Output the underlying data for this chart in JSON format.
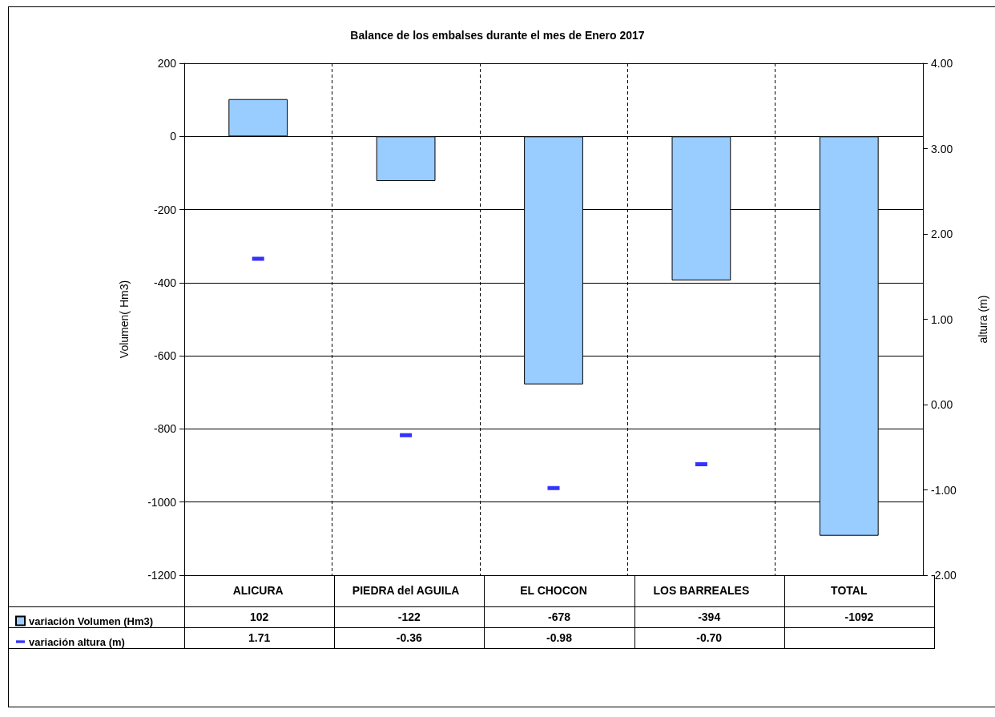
{
  "chart_data": {
    "type": "bar",
    "title": "Balance de los embalses durante el mes de Enero 2017",
    "ylabel": "Volumen( Hm3)",
    "y2label": "altura (m)",
    "categories": [
      "ALICURA",
      "PIEDRA del AGUILA",
      "EL CHOCON",
      "LOS BARREALES",
      "TOTAL"
    ],
    "series": [
      {
        "name": "variación Volumen (Hm3)",
        "color": "#99ccff",
        "values": [
          102,
          -122,
          -678,
          -394,
          -1092
        ],
        "value_labels": [
          "102",
          "-122",
          "-678",
          "-394",
          "-1092"
        ]
      },
      {
        "name": "variación altura (m)",
        "type": "scatter",
        "axis": "y2",
        "color": "#0000ff",
        "values": [
          1.71,
          -0.36,
          -0.98,
          -0.7,
          null
        ],
        "value_labels": [
          "1.71",
          "-0.36",
          "-0.98",
          "-0.70",
          null
        ]
      }
    ],
    "ylim": [
      -1200,
      200
    ],
    "yticks": [
      -1200,
      -1000,
      -800,
      -600,
      -400,
      -200,
      0,
      200
    ],
    "y2lim": [
      -2,
      4
    ],
    "y2ticks": [
      {
        "value": -2,
        "label": "-2.00"
      },
      {
        "value": -1,
        "label": "-1.00"
      },
      {
        "value": 0,
        "label": "0.00"
      },
      {
        "value": 1,
        "label": "1.00"
      },
      {
        "value": 2,
        "label": "2.00"
      },
      {
        "value": 3,
        "label": "3.00"
      },
      {
        "value": 4,
        "label": "4.00"
      }
    ],
    "grid": true,
    "legend": "bottom left"
  }
}
